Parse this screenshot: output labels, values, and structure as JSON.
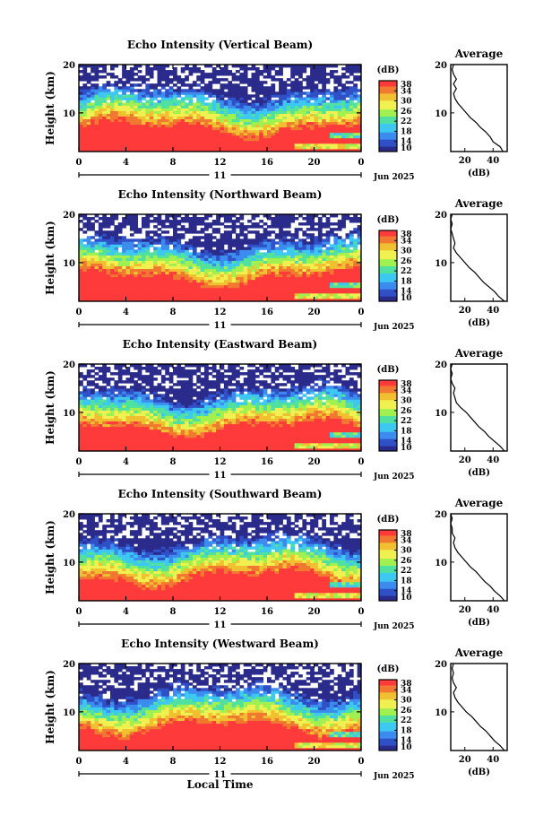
{
  "figure": {
    "xlabel": "Local Time",
    "date_label": "11",
    "date_suffix": "Jun 2025"
  },
  "chart_data": [
    {
      "type": "heatmap",
      "title": "Echo Intensity (Vertical Beam)",
      "ylabel": "Height (km)",
      "x_ticks": [
        "0",
        "4",
        "8",
        "12",
        "16",
        "20",
        "0"
      ],
      "y_ticks": [
        "10",
        "20"
      ],
      "xlim": [
        0,
        24
      ],
      "ylim": [
        2,
        20
      ],
      "colorbar": {
        "unit": "(dB)",
        "ticks": [
          "10",
          "14",
          "18",
          "22",
          "26",
          "30",
          "34",
          "38"
        ],
        "range": [
          10,
          38
        ],
        "colors": [
          "#2b2b8c",
          "#3050c8",
          "#3c8cf0",
          "#3cc8f0",
          "#50e0a0",
          "#a0f050",
          "#f0f050",
          "#f0c030",
          "#f07830",
          "#ff3a3a"
        ]
      },
      "profile": {
        "title": "Average",
        "xlabel": "(dB)",
        "x_ticks": [
          "20",
          "40"
        ],
        "y_ticks": [
          "10",
          "20"
        ],
        "heights": [
          2,
          3,
          4,
          5,
          6,
          7,
          8,
          9,
          10,
          11,
          12,
          13,
          14,
          15,
          16,
          17,
          18,
          19,
          20
        ],
        "values": [
          47,
          45,
          40,
          38,
          35,
          31,
          28,
          24,
          21,
          18,
          15,
          13,
          12,
          14,
          12,
          14,
          12,
          11,
          12
        ]
      }
    },
    {
      "type": "heatmap",
      "title": "Echo Intensity (Northward Beam)",
      "ylabel": "Height (km)",
      "x_ticks": [
        "0",
        "4",
        "8",
        "12",
        "16",
        "20",
        "0"
      ],
      "y_ticks": [
        "10",
        "20"
      ],
      "xlim": [
        0,
        24
      ],
      "ylim": [
        2,
        20
      ],
      "colorbar": {
        "unit": "(dB)",
        "ticks": [
          "10",
          "14",
          "18",
          "22",
          "26",
          "30",
          "34",
          "38"
        ],
        "range": [
          10,
          38
        ],
        "colors": [
          "#2b2b8c",
          "#3050c8",
          "#3c8cf0",
          "#3cc8f0",
          "#50e0a0",
          "#a0f050",
          "#f0f050",
          "#f0c030",
          "#f07830",
          "#ff3a3a"
        ]
      },
      "profile": {
        "title": "Average",
        "xlabel": "(dB)",
        "x_ticks": [
          "20",
          "40"
        ],
        "y_ticks": [
          "10",
          "20"
        ],
        "heights": [
          2,
          3,
          4,
          5,
          6,
          7,
          8,
          9,
          10,
          11,
          12,
          13,
          14,
          15,
          16,
          17,
          18,
          19,
          20
        ],
        "values": [
          48,
          44,
          41,
          37,
          33,
          30,
          27,
          23,
          20,
          17,
          14,
          12,
          13,
          12,
          11,
          10,
          11,
          10,
          11
        ]
      }
    },
    {
      "type": "heatmap",
      "title": "Echo Intensity (Eastward Beam)",
      "ylabel": "Height (km)",
      "x_ticks": [
        "0",
        "4",
        "8",
        "12",
        "16",
        "20",
        "0"
      ],
      "y_ticks": [
        "10",
        "20"
      ],
      "xlim": [
        0,
        24
      ],
      "ylim": [
        2,
        20
      ],
      "colorbar": {
        "unit": "(dB)",
        "ticks": [
          "10",
          "14",
          "18",
          "22",
          "26",
          "30",
          "34",
          "38"
        ],
        "range": [
          10,
          38
        ],
        "colors": [
          "#2b2b8c",
          "#3050c8",
          "#3c8cf0",
          "#3cc8f0",
          "#50e0a0",
          "#a0f050",
          "#f0f050",
          "#f0c030",
          "#f07830",
          "#ff3a3a"
        ]
      },
      "profile": {
        "title": "Average",
        "xlabel": "(dB)",
        "x_ticks": [
          "20",
          "40"
        ],
        "y_ticks": [
          "10",
          "20"
        ],
        "heights": [
          2,
          3,
          4,
          5,
          6,
          7,
          8,
          9,
          10,
          11,
          12,
          13,
          14,
          15,
          16,
          17,
          18,
          19,
          20
        ],
        "values": [
          48,
          45,
          41,
          37,
          34,
          30,
          27,
          24,
          21,
          17,
          14,
          13,
          12,
          13,
          11,
          10,
          11,
          10,
          11
        ]
      }
    },
    {
      "type": "heatmap",
      "title": "Echo Intensity (Southward Beam)",
      "ylabel": "Height (km)",
      "x_ticks": [
        "0",
        "4",
        "8",
        "12",
        "16",
        "20",
        "0"
      ],
      "y_ticks": [
        "10",
        "20"
      ],
      "xlim": [
        0,
        24
      ],
      "ylim": [
        2,
        20
      ],
      "colorbar": {
        "unit": "(dB)",
        "ticks": [
          "10",
          "14",
          "18",
          "22",
          "26",
          "30",
          "34",
          "38"
        ],
        "range": [
          10,
          38
        ],
        "colors": [
          "#2b2b8c",
          "#3050c8",
          "#3c8cf0",
          "#3cc8f0",
          "#50e0a0",
          "#a0f050",
          "#f0f050",
          "#f0c030",
          "#f07830",
          "#ff3a3a"
        ]
      },
      "profile": {
        "title": "Average",
        "xlabel": "(dB)",
        "x_ticks": [
          "20",
          "40"
        ],
        "y_ticks": [
          "10",
          "20"
        ],
        "heights": [
          2,
          3,
          4,
          5,
          6,
          7,
          8,
          9,
          10,
          11,
          12,
          13,
          14,
          15,
          16,
          17,
          18,
          19,
          20
        ],
        "values": [
          48,
          45,
          41,
          38,
          34,
          31,
          28,
          24,
          21,
          18,
          15,
          13,
          12,
          13,
          11,
          11,
          10,
          11,
          10
        ]
      }
    },
    {
      "type": "heatmap",
      "title": "Echo Intensity (Westward Beam)",
      "ylabel": "Height (km)",
      "x_ticks": [
        "0",
        "4",
        "8",
        "12",
        "16",
        "20",
        "0"
      ],
      "y_ticks": [
        "10",
        "20"
      ],
      "xlim": [
        0,
        24
      ],
      "ylim": [
        2,
        20
      ],
      "colorbar": {
        "unit": "(dB)",
        "ticks": [
          "10",
          "14",
          "18",
          "22",
          "26",
          "30",
          "34",
          "38"
        ],
        "range": [
          10,
          38
        ],
        "colors": [
          "#2b2b8c",
          "#3050c8",
          "#3c8cf0",
          "#3cc8f0",
          "#50e0a0",
          "#a0f050",
          "#f0f050",
          "#f0c030",
          "#f07830",
          "#ff3a3a"
        ]
      },
      "profile": {
        "title": "Average",
        "xlabel": "(dB)",
        "x_ticks": [
          "20",
          "40"
        ],
        "y_ticks": [
          "10",
          "20"
        ],
        "heights": [
          2,
          3,
          4,
          5,
          6,
          7,
          8,
          9,
          10,
          11,
          12,
          13,
          14,
          15,
          16,
          17,
          18,
          19,
          20
        ],
        "values": [
          48,
          45,
          41,
          38,
          35,
          31,
          28,
          25,
          21,
          18,
          15,
          13,
          12,
          14,
          12,
          11,
          12,
          11,
          12
        ]
      }
    }
  ]
}
